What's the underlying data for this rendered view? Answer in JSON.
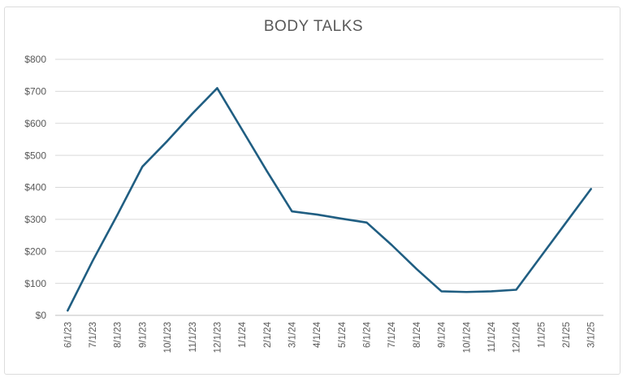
{
  "chart_data": {
    "type": "line",
    "title": "BODY TALKS",
    "x": [
      "6/1/23",
      "7/1/23",
      "8/1/23",
      "9/1/23",
      "10/1/23",
      "11/1/23",
      "12/1/23",
      "1/1/24",
      "2/1/24",
      "3/1/24",
      "4/1/24",
      "5/1/24",
      "6/1/24",
      "7/1/24",
      "8/1/24",
      "9/1/24",
      "10/1/24",
      "11/1/24",
      "12/1/24",
      "1/1/25",
      "2/1/25",
      "3/1/25"
    ],
    "values": [
      15,
      170,
      315,
      465,
      545,
      630,
      710,
      580,
      450,
      325,
      315,
      302,
      290,
      220,
      145,
      75,
      73,
      75,
      80,
      185,
      290,
      395
    ],
    "ylim": [
      0,
      800
    ],
    "ytick_values": [
      0,
      100,
      200,
      300,
      400,
      500,
      600,
      700,
      800
    ],
    "ytick_labels": [
      "$0",
      "$100",
      "$200",
      "$300",
      "$400",
      "$500",
      "$600",
      "$700",
      "$800"
    ],
    "xlabel": "",
    "ylabel": "",
    "grid": true,
    "legend": "none"
  },
  "colors": {
    "series_line": "#205e82",
    "gridline": "#d9d9d9",
    "axis_line": "#bfbfbf",
    "tick_label": "#595959",
    "title": "#595959",
    "frame_border": "#dcdcdc",
    "background": "#ffffff"
  }
}
